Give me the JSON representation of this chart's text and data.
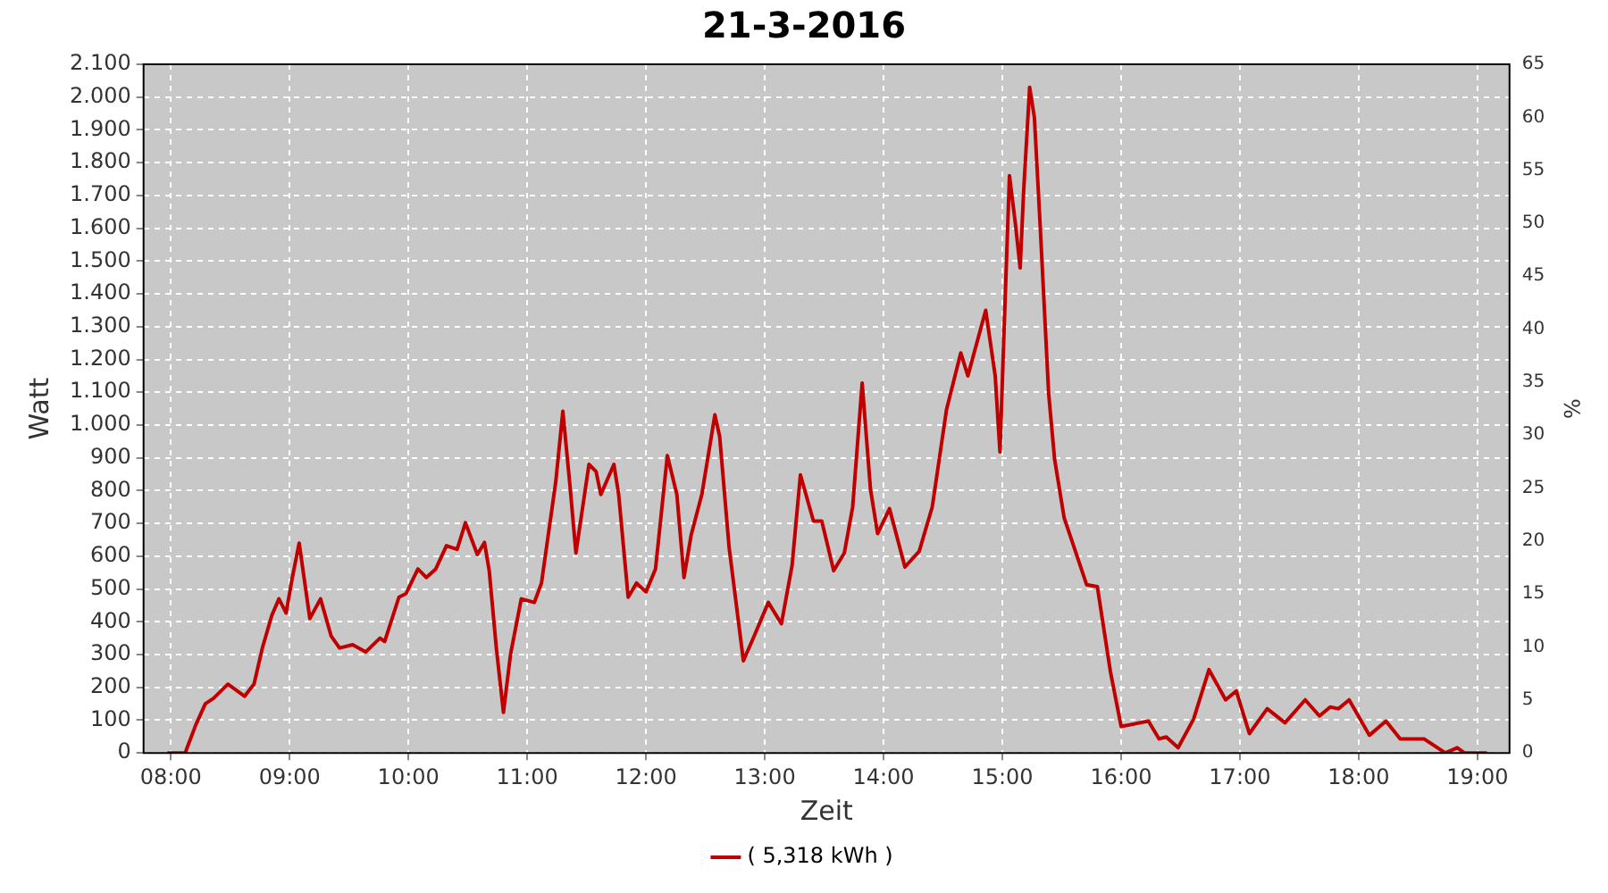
{
  "chart_data": {
    "type": "line",
    "title": "21-3-2016",
    "xlabel": "Zeit",
    "ylabel": "Watt",
    "y2label": "%",
    "xlim": [
      7.77,
      19.27
    ],
    "xticks": [
      {
        "value": 8,
        "label": "08:00"
      },
      {
        "value": 9,
        "label": "09:00"
      },
      {
        "value": 10,
        "label": "10:00"
      },
      {
        "value": 11,
        "label": "11:00"
      },
      {
        "value": 12,
        "label": "12:00"
      },
      {
        "value": 13,
        "label": "13:00"
      },
      {
        "value": 14,
        "label": "14:00"
      },
      {
        "value": 15,
        "label": "15:00"
      },
      {
        "value": 16,
        "label": "16:00"
      },
      {
        "value": 17,
        "label": "17:00"
      },
      {
        "value": 18,
        "label": "18:00"
      },
      {
        "value": 19,
        "label": "19:00"
      }
    ],
    "ylim": [
      0,
      2100
    ],
    "yticks": [
      0,
      100,
      200,
      300,
      400,
      500,
      600,
      700,
      800,
      900,
      {
        "value": 1000,
        "label": "1.000"
      },
      {
        "value": 1100,
        "label": "1.100"
      },
      {
        "value": 1200,
        "label": "1.200"
      },
      {
        "value": 1300,
        "label": "1.300"
      },
      {
        "value": 1400,
        "label": "1.400"
      },
      {
        "value": 1500,
        "label": "1.500"
      },
      {
        "value": 1600,
        "label": "1.600"
      },
      {
        "value": 1700,
        "label": "1.700"
      },
      {
        "value": 1800,
        "label": "1.800"
      },
      {
        "value": 1900,
        "label": "1.900"
      },
      {
        "value": 2000,
        "label": "2.000"
      },
      {
        "value": 2100,
        "label": "2.100"
      }
    ],
    "y2lim": [
      0,
      65
    ],
    "y2ticks": [
      0,
      5,
      10,
      15,
      20,
      25,
      30,
      35,
      40,
      45,
      50,
      55,
      60,
      65
    ],
    "grid": true,
    "legend": "bottom",
    "marker": "none",
    "line_style": "solid",
    "series": [
      {
        "name": "( 5,318 kWh )",
        "color": "#c00000",
        "x": [
          7.97,
          8.12,
          8.21,
          8.29,
          8.36,
          8.48,
          8.62,
          8.7,
          8.77,
          8.85,
          8.91,
          8.97,
          9.02,
          9.08,
          9.17,
          9.26,
          9.35,
          9.42,
          9.53,
          9.64,
          9.76,
          9.8,
          9.92,
          9.98,
          10.08,
          10.15,
          10.23,
          10.32,
          10.41,
          10.48,
          10.58,
          10.64,
          10.68,
          10.74,
          10.8,
          10.86,
          10.95,
          11.06,
          11.12,
          11.24,
          11.3,
          11.36,
          11.41,
          11.52,
          11.58,
          11.62,
          11.73,
          11.77,
          11.85,
          11.92,
          12.0,
          12.08,
          12.18,
          12.26,
          12.32,
          12.38,
          12.47,
          12.58,
          12.62,
          12.7,
          12.82,
          12.91,
          13.03,
          13.14,
          13.23,
          13.3,
          13.41,
          13.48,
          13.58,
          13.67,
          13.74,
          13.82,
          13.89,
          13.95,
          14.05,
          14.18,
          14.3,
          14.41,
          14.53,
          14.65,
          14.71,
          14.86,
          14.94,
          14.98,
          15.02,
          15.06,
          15.11,
          15.15,
          15.18,
          15.23,
          15.27,
          15.32,
          15.39,
          15.44,
          15.52,
          15.62,
          15.71,
          15.8,
          15.91,
          16.0,
          16.23,
          16.32,
          16.38,
          16.48,
          16.61,
          16.74,
          16.88,
          16.97,
          17.08,
          17.23,
          17.38,
          17.55,
          17.67,
          17.76,
          17.83,
          17.92,
          17.98,
          18.09,
          18.23,
          18.35,
          18.55,
          18.73,
          18.83,
          18.89,
          19.08
        ],
        "values": [
          0,
          0,
          86,
          150,
          167,
          210,
          173,
          210,
          320,
          420,
          470,
          427,
          530,
          640,
          410,
          470,
          356,
          320,
          330,
          308,
          350,
          340,
          475,
          486,
          561,
          535,
          561,
          632,
          621,
          702,
          605,
          642,
          556,
          320,
          124,
          302,
          470,
          459,
          518,
          826,
          1042,
          815,
          610,
          880,
          858,
          788,
          880,
          788,
          475,
          518,
          491,
          561,
          907,
          788,
          535,
          664,
          788,
          1031,
          966,
          626,
          281,
          356,
          459,
          394,
          572,
          848,
          707,
          707,
          556,
          610,
          750,
          1128,
          804,
          669,
          745,
          567,
          615,
          750,
          1047,
          1220,
          1150,
          1350,
          1150,
          918,
          1344,
          1760,
          1614,
          1479,
          1717,
          2030,
          1938,
          1598,
          1096,
          896,
          718,
          610,
          513,
          507,
          248,
          81,
          97,
          43,
          49,
          16,
          103,
          254,
          162,
          189,
          59,
          135,
          92,
          162,
          113,
          140,
          135,
          162,
          124,
          54,
          97,
          43,
          43,
          0,
          16,
          0,
          0
        ]
      }
    ]
  }
}
